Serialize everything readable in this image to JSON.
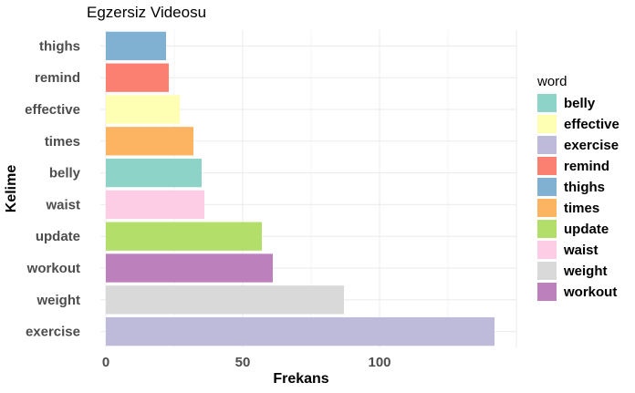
{
  "chart_data": {
    "type": "bar",
    "orientation": "horizontal",
    "title": "Egzersiz Videosu",
    "xlabel": "Frekans",
    "ylabel": "Kelime",
    "xlim": [
      0,
      150
    ],
    "x_ticks": [
      0,
      50,
      100
    ],
    "grid": true,
    "legend_position": "right",
    "legend_title": "word",
    "categories": [
      "thighs",
      "remind",
      "effective",
      "times",
      "belly",
      "waist",
      "update",
      "workout",
      "weight",
      "exercise"
    ],
    "values": [
      22,
      23,
      27,
      32,
      35,
      36,
      57,
      61,
      87,
      142
    ],
    "colors": {
      "belly": "#8dd3c7",
      "effective": "#ffffb3",
      "exercise": "#bebada",
      "remind": "#fb8072",
      "thighs": "#80b1d3",
      "times": "#fdb462",
      "update": "#b3de69",
      "waist": "#fccde5",
      "weight": "#d9d9d9",
      "workout": "#bc80bd"
    },
    "legend_entries": [
      "belly",
      "effective",
      "exercise",
      "remind",
      "thighs",
      "times",
      "update",
      "waist",
      "weight",
      "workout"
    ]
  }
}
